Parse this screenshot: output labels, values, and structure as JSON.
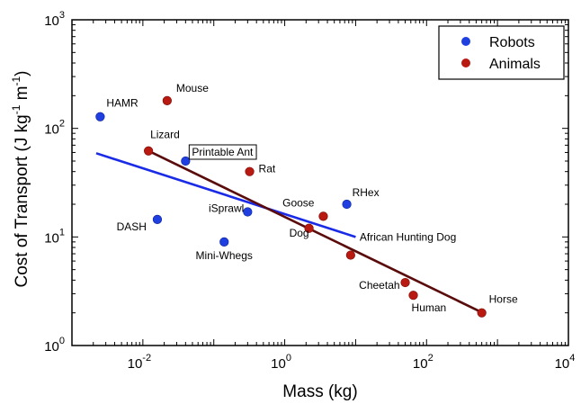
{
  "chart_data": {
    "type": "scatter",
    "xscale": "log",
    "yscale": "log",
    "xlim": [
      0.001,
      10000
    ],
    "ylim": [
      1,
      1000
    ],
    "xlabel": "Mass (kg)",
    "ylabel_parts": [
      "Cost of Transport (J kg",
      "-1",
      " m",
      "-1",
      ")"
    ],
    "xticks": [
      {
        "value": 0.01,
        "base": "10",
        "exp": "-2"
      },
      {
        "value": 1,
        "base": "10",
        "exp": "0"
      },
      {
        "value": 100,
        "base": "10",
        "exp": "2"
      },
      {
        "value": 10000,
        "base": "10",
        "exp": "4"
      }
    ],
    "yticks": [
      {
        "value": 1,
        "base": "10",
        "exp": "0"
      },
      {
        "value": 10,
        "base": "10",
        "exp": "1"
      },
      {
        "value": 100,
        "base": "10",
        "exp": "2"
      },
      {
        "value": 1000,
        "base": "10",
        "exp": "3"
      }
    ],
    "legend": {
      "position": "top-right",
      "entries": [
        {
          "label": "Robots",
          "color": "#1f3fe0"
        },
        {
          "label": "Animals",
          "color": "#b81a12"
        }
      ]
    },
    "series": [
      {
        "name": "Robots",
        "color": "#1f3fe0",
        "points": [
          {
            "label": "HAMR",
            "x": 0.0025,
            "y": 128
          },
          {
            "label": "Printable Ant",
            "x": 0.04,
            "y": 50,
            "boxed": true
          },
          {
            "label": "DASH",
            "x": 0.016,
            "y": 14.5
          },
          {
            "label": "iSprawl",
            "x": 0.3,
            "y": 17
          },
          {
            "label": "Mini-Whegs",
            "x": 0.14,
            "y": 9
          },
          {
            "label": "RHex",
            "x": 7.5,
            "y": 20
          }
        ]
      },
      {
        "name": "Animals",
        "color": "#b81a12",
        "points": [
          {
            "label": "Mouse",
            "x": 0.022,
            "y": 180
          },
          {
            "label": "Lizard",
            "x": 0.012,
            "y": 62
          },
          {
            "label": "Rat",
            "x": 0.32,
            "y": 40
          },
          {
            "label": "Goose",
            "x": 3.5,
            "y": 15.5
          },
          {
            "label": "Dog",
            "x": 2.2,
            "y": 12
          },
          {
            "label": "African Hunting Dog",
            "x": 8.5,
            "y": 6.8
          },
          {
            "label": "Cheetah",
            "x": 50,
            "y": 3.8
          },
          {
            "label": "Human",
            "x": 65,
            "y": 2.9
          },
          {
            "label": "Horse",
            "x": 600,
            "y": 2
          }
        ]
      }
    ],
    "fit_lines": [
      {
        "name": "Robots fit",
        "color": "#1a2be8",
        "x": [
          0.0022,
          10
        ],
        "y": [
          59,
          10
        ]
      },
      {
        "name": "Animals fit",
        "color": "#5a0b0b",
        "x": [
          0.012,
          620
        ],
        "y": [
          62,
          2
        ]
      }
    ]
  }
}
